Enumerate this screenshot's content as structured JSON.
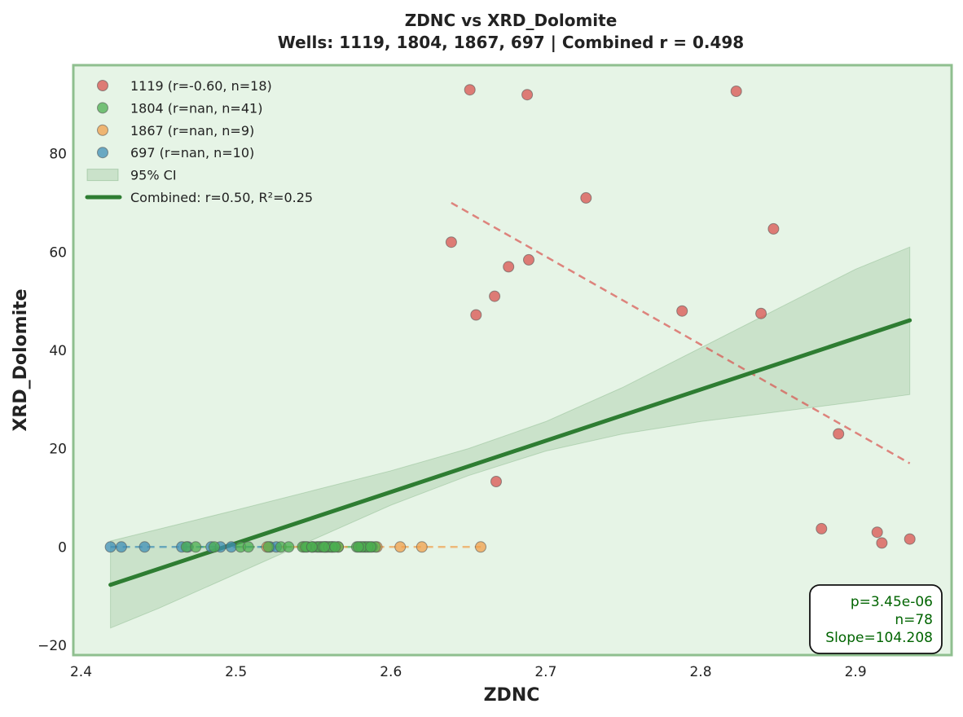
{
  "chart_data": {
    "type": "scatter",
    "title": "ZDNC vs XRD_Dolomite",
    "subtitle": "Wells: 1119, 1804, 1867, 697 | Combined r = 0.498",
    "xlabel": "ZDNC",
    "ylabel": "XRD_Dolomite",
    "xlim": [
      2.395,
      2.962
    ],
    "ylim": [
      -22,
      98
    ],
    "x_ticks": [
      2.4,
      2.5,
      2.6,
      2.7,
      2.8,
      2.9
    ],
    "y_ticks": [
      -20,
      0,
      20,
      40,
      60,
      80
    ],
    "grid": false,
    "background": "#e6f4e6",
    "frame_color": "#8fbf8f",
    "legend_position": "upper left",
    "series": [
      {
        "name": "1119 (r=-0.60, n=18)",
        "color": "#d9534f",
        "x": [
          2.651,
          2.688,
          2.823,
          2.726,
          2.847,
          2.639,
          2.689,
          2.676,
          2.667,
          2.655,
          2.788,
          2.839,
          2.889,
          2.668,
          2.878,
          2.914,
          2.917,
          2.935
        ],
        "y": [
          93.0,
          92.0,
          92.7,
          71.0,
          64.7,
          62.0,
          58.4,
          57.0,
          51.0,
          47.2,
          48.0,
          47.5,
          23.0,
          13.3,
          3.7,
          3.0,
          0.8,
          1.6
        ],
        "trend": {
          "x": [
            2.639,
            2.935
          ],
          "y": [
            70.0,
            17.0
          ]
        }
      },
      {
        "name": "1804 (r=nan, n=41)",
        "color": "#4caf50",
        "x": [
          2.468,
          2.474,
          2.486,
          2.503,
          2.508,
          2.521,
          2.529,
          2.534,
          2.543,
          2.546,
          2.55,
          2.553,
          2.555,
          2.557,
          2.559,
          2.561,
          2.563,
          2.566,
          2.578,
          2.58,
          2.582,
          2.584,
          2.586,
          2.588,
          2.59,
          2.549,
          2.552,
          2.554,
          2.556,
          2.558,
          2.56,
          2.562,
          2.564,
          2.557,
          2.545,
          2.549,
          2.583,
          2.585,
          2.581,
          2.579,
          2.587
        ],
        "y": [
          0,
          0,
          0,
          0,
          0,
          0,
          0,
          0,
          0,
          0,
          0,
          0,
          0,
          0,
          0,
          0,
          0,
          0,
          0,
          0,
          0,
          0,
          0,
          0,
          0,
          0,
          0,
          0,
          0,
          0,
          0,
          0,
          0,
          0,
          0,
          0,
          0,
          0,
          0,
          0,
          0
        ],
        "trend": {
          "x": [
            2.468,
            2.59
          ],
          "y": [
            0,
            0
          ]
        }
      },
      {
        "name": "1867 (r=nan, n=9)",
        "color": "#f0a04b",
        "x": [
          2.52,
          2.544,
          2.558,
          2.562,
          2.566,
          2.591,
          2.606,
          2.62,
          2.658
        ],
        "y": [
          0,
          0,
          0,
          0,
          0,
          0,
          0,
          0,
          0
        ],
        "trend": {
          "x": [
            2.52,
            2.658
          ],
          "y": [
            0,
            0
          ]
        }
      },
      {
        "name": "697 (r=nan, n=10)",
        "color": "#3f8fb5",
        "x": [
          2.419,
          2.426,
          2.441,
          2.465,
          2.469,
          2.484,
          2.49,
          2.497,
          2.522,
          2.526
        ],
        "y": [
          0,
          0,
          0,
          0,
          0,
          0,
          0,
          0,
          0,
          0
        ],
        "trend": {
          "x": [
            2.419,
            2.526
          ],
          "y": [
            0,
            0
          ]
        }
      }
    ],
    "combined_fit": {
      "name": "Combined: r=0.50, R²=0.25",
      "color": "#2e7d32",
      "x": [
        2.419,
        2.935
      ],
      "y": [
        -7.7,
        46.1
      ]
    },
    "ci_band": {
      "name": "95% CI",
      "color": "#2e7d32",
      "x": [
        2.419,
        2.45,
        2.5,
        2.55,
        2.6,
        2.65,
        2.7,
        2.75,
        2.8,
        2.85,
        2.9,
        2.935
      ],
      "lower": [
        -16.5,
        -12.5,
        -5.5,
        1.5,
        8.5,
        14.5,
        19.5,
        23.0,
        25.5,
        27.5,
        29.5,
        31.0
      ],
      "upper": [
        1.2,
        3.6,
        7.5,
        11.5,
        15.5,
        20.0,
        25.5,
        32.5,
        40.5,
        48.5,
        56.5,
        61.0
      ]
    },
    "stats_box": [
      "p=3.45e-06",
      "n=78",
      "Slope=104.208"
    ]
  }
}
